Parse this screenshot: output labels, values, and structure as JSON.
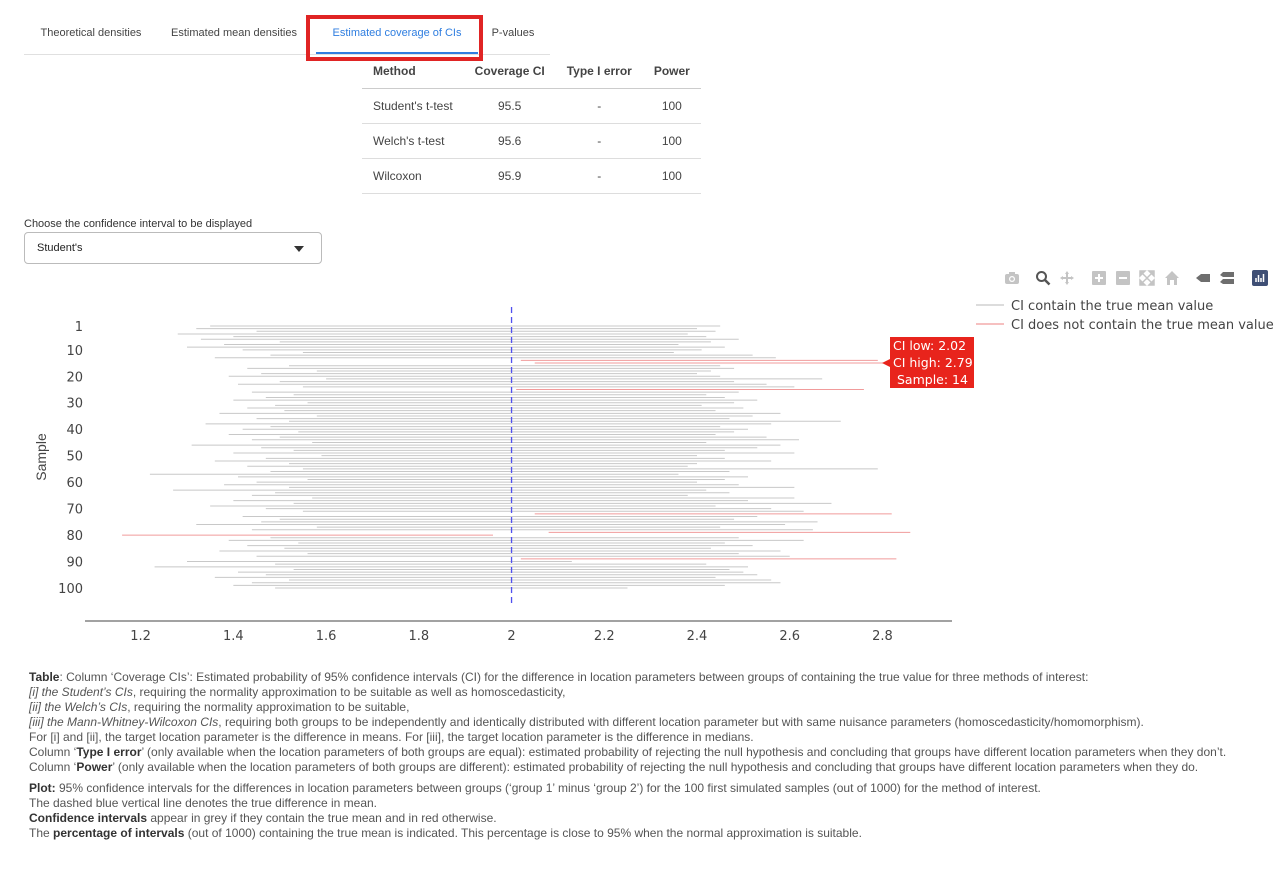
{
  "tabs": [
    {
      "label": "Theoretical densities"
    },
    {
      "label": "Estimated mean densities"
    },
    {
      "label": "Estimated coverage of CIs"
    },
    {
      "label": "P-values"
    }
  ],
  "table": {
    "headers": [
      "Method",
      "Coverage CI",
      "Type I error",
      "Power"
    ],
    "rows": [
      [
        "Student's t-test",
        "95.5",
        "-",
        "100"
      ],
      [
        "Welch's t-test",
        "95.6",
        "-",
        "100"
      ],
      [
        "Wilcoxon",
        "95.9",
        "-",
        "100"
      ]
    ]
  },
  "ci_select": {
    "label": "Choose the confidence interval to be displayed",
    "value": "Student's"
  },
  "modebar": {
    "icons": [
      "camera-icon",
      "zoom-icon",
      "pan-icon",
      "zoom-in-icon",
      "zoom-out-icon",
      "autoscale-icon",
      "home-icon",
      "hover-closest-icon",
      "hover-compare-icon",
      "plotly-logo-icon"
    ]
  },
  "colors": {
    "accent": "#2f7ee0",
    "ci_ok": "#c8c8c8",
    "ci_miss": "#f19b9b",
    "true_line": "#5050ee",
    "tooltip": "#e8241c"
  },
  "chart_data": {
    "type": "line",
    "ylabel": "Sample",
    "x_ticks": [
      "1.2",
      "1.4",
      "1.6",
      "1.8",
      "2",
      "2.2",
      "2.4",
      "2.6",
      "2.8"
    ],
    "y_ticks": [
      "1",
      "10",
      "20",
      "30",
      "40",
      "50",
      "60",
      "70",
      "80",
      "90",
      "100"
    ],
    "xlim": [
      1.08,
      2.95
    ],
    "true_value": 2,
    "legend": {
      "position": "top-right",
      "items": [
        "CI contain the true mean value",
        "CI does not contain the true mean value"
      ]
    },
    "tooltip": {
      "line1": "CI low: 2.02",
      "line2": "CI high: 2.79",
      "line3": "Sample: 14",
      "sample": 14,
      "low": 2.02,
      "high": 2.79
    },
    "intervals": [
      {
        "s": 1,
        "low": 1.35,
        "high": 2.45
      },
      {
        "s": 2,
        "low": 1.32,
        "high": 2.4
      },
      {
        "s": 3,
        "low": 1.45,
        "high": 2.44
      },
      {
        "s": 4,
        "low": 1.28,
        "high": 2.38
      },
      {
        "s": 5,
        "low": 1.4,
        "high": 2.42
      },
      {
        "s": 6,
        "low": 1.33,
        "high": 2.49
      },
      {
        "s": 7,
        "low": 1.5,
        "high": 2.43
      },
      {
        "s": 8,
        "low": 1.38,
        "high": 2.36
      },
      {
        "s": 9,
        "low": 1.3,
        "high": 2.46
      },
      {
        "s": 10,
        "low": 1.42,
        "high": 2.41
      },
      {
        "s": 11,
        "low": 1.55,
        "high": 2.35
      },
      {
        "s": 12,
        "low": 1.48,
        "high": 2.52
      },
      {
        "s": 13,
        "low": 1.36,
        "high": 2.57
      },
      {
        "s": 14,
        "low": 2.02,
        "high": 2.79
      },
      {
        "s": 15,
        "low": 2.05,
        "high": 2.81
      },
      {
        "s": 16,
        "low": 1.52,
        "high": 2.45
      },
      {
        "s": 17,
        "low": 1.43,
        "high": 2.48
      },
      {
        "s": 18,
        "low": 1.58,
        "high": 2.43
      },
      {
        "s": 19,
        "low": 1.46,
        "high": 2.4
      },
      {
        "s": 20,
        "low": 1.39,
        "high": 2.45
      },
      {
        "s": 21,
        "low": 1.6,
        "high": 2.67
      },
      {
        "s": 22,
        "low": 1.5,
        "high": 2.48
      },
      {
        "s": 23,
        "low": 1.41,
        "high": 2.55
      },
      {
        "s": 24,
        "low": 1.55,
        "high": 2.61
      },
      {
        "s": 25,
        "low": 2.01,
        "high": 2.76
      },
      {
        "s": 26,
        "low": 1.44,
        "high": 2.49
      },
      {
        "s": 27,
        "low": 1.53,
        "high": 2.42
      },
      {
        "s": 28,
        "low": 1.47,
        "high": 2.46
      },
      {
        "s": 29,
        "low": 1.4,
        "high": 2.53
      },
      {
        "s": 30,
        "low": 1.56,
        "high": 2.48
      },
      {
        "s": 31,
        "low": 1.49,
        "high": 2.41
      },
      {
        "s": 32,
        "low": 1.43,
        "high": 2.5
      },
      {
        "s": 33,
        "low": 1.51,
        "high": 2.44
      },
      {
        "s": 34,
        "low": 1.37,
        "high": 2.58
      },
      {
        "s": 35,
        "low": 1.58,
        "high": 2.52
      },
      {
        "s": 36,
        "low": 1.45,
        "high": 2.47
      },
      {
        "s": 37,
        "low": 1.52,
        "high": 2.71
      },
      {
        "s": 38,
        "low": 1.34,
        "high": 2.56
      },
      {
        "s": 39,
        "low": 1.48,
        "high": 2.45
      },
      {
        "s": 40,
        "low": 1.42,
        "high": 2.51
      },
      {
        "s": 41,
        "low": 1.54,
        "high": 2.48
      },
      {
        "s": 42,
        "low": 1.39,
        "high": 2.44
      },
      {
        "s": 43,
        "low": 1.5,
        "high": 2.55
      },
      {
        "s": 44,
        "low": 1.44,
        "high": 2.62
      },
      {
        "s": 45,
        "low": 1.57,
        "high": 2.42
      },
      {
        "s": 46,
        "low": 1.31,
        "high": 2.58
      },
      {
        "s": 47,
        "low": 1.46,
        "high": 2.53
      },
      {
        "s": 48,
        "low": 1.53,
        "high": 2.46
      },
      {
        "s": 49,
        "low": 1.4,
        "high": 2.61
      },
      {
        "s": 50,
        "low": 1.59,
        "high": 2.4
      },
      {
        "s": 51,
        "low": 1.47,
        "high": 2.46
      },
      {
        "s": 52,
        "low": 1.36,
        "high": 2.56
      },
      {
        "s": 53,
        "low": 1.52,
        "high": 2.4
      },
      {
        "s": 54,
        "low": 1.43,
        "high": 2.38
      },
      {
        "s": 55,
        "low": 1.55,
        "high": 2.79
      },
      {
        "s": 56,
        "low": 1.48,
        "high": 2.47
      },
      {
        "s": 57,
        "low": 1.22,
        "high": 2.36
      },
      {
        "s": 58,
        "low": 1.41,
        "high": 2.51
      },
      {
        "s": 59,
        "low": 1.56,
        "high": 2.46
      },
      {
        "s": 60,
        "low": 1.45,
        "high": 2.4
      },
      {
        "s": 61,
        "low": 1.38,
        "high": 2.49
      },
      {
        "s": 62,
        "low": 1.52,
        "high": 2.61
      },
      {
        "s": 63,
        "low": 1.27,
        "high": 2.42
      },
      {
        "s": 64,
        "low": 1.49,
        "high": 2.47
      },
      {
        "s": 65,
        "low": 1.44,
        "high": 2.38
      },
      {
        "s": 66,
        "low": 1.57,
        "high": 2.61
      },
      {
        "s": 67,
        "low": 1.4,
        "high": 2.51
      },
      {
        "s": 68,
        "low": 1.53,
        "high": 2.69
      },
      {
        "s": 69,
        "low": 1.35,
        "high": 2.44
      },
      {
        "s": 70,
        "low": 1.47,
        "high": 2.56
      },
      {
        "s": 71,
        "low": 1.55,
        "high": 2.63
      },
      {
        "s": 72,
        "low": 2.05,
        "high": 2.82
      },
      {
        "s": 73,
        "low": 1.42,
        "high": 2.53
      },
      {
        "s": 74,
        "low": 1.5,
        "high": 2.48
      },
      {
        "s": 75,
        "low": 1.46,
        "high": 2.66
      },
      {
        "s": 76,
        "low": 1.32,
        "high": 2.59
      },
      {
        "s": 77,
        "low": 1.58,
        "high": 2.45
      },
      {
        "s": 78,
        "low": 1.44,
        "high": 2.65
      },
      {
        "s": 79,
        "low": 2.08,
        "high": 2.86
      },
      {
        "s": 80,
        "low": 1.16,
        "high": 1.96
      },
      {
        "s": 81,
        "low": 1.48,
        "high": 2.49
      },
      {
        "s": 82,
        "low": 1.39,
        "high": 2.63
      },
      {
        "s": 83,
        "low": 1.54,
        "high": 2.46
      },
      {
        "s": 84,
        "low": 1.43,
        "high": 2.52
      },
      {
        "s": 85,
        "low": 1.51,
        "high": 2.43
      },
      {
        "s": 86,
        "low": 1.37,
        "high": 2.58
      },
      {
        "s": 87,
        "low": 1.56,
        "high": 2.49
      },
      {
        "s": 88,
        "low": 1.45,
        "high": 2.6
      },
      {
        "s": 89,
        "low": 2.02,
        "high": 2.83
      },
      {
        "s": 90,
        "low": 1.3,
        "high": 2.13
      },
      {
        "s": 91,
        "low": 1.49,
        "high": 2.42
      },
      {
        "s": 92,
        "low": 1.23,
        "high": 2.51
      },
      {
        "s": 93,
        "low": 1.53,
        "high": 2.47
      },
      {
        "s": 94,
        "low": 1.41,
        "high": 2.5
      },
      {
        "s": 95,
        "low": 1.47,
        "high": 2.53
      },
      {
        "s": 96,
        "low": 1.36,
        "high": 2.44
      },
      {
        "s": 97,
        "low": 1.52,
        "high": 2.56
      },
      {
        "s": 98,
        "low": 1.44,
        "high": 2.58
      },
      {
        "s": 99,
        "low": 1.4,
        "high": 2.46
      },
      {
        "s": 100,
        "low": 1.49,
        "high": 2.25
      }
    ]
  },
  "caption": {
    "table_label": "Table",
    "table_text": ": Column ‘Coverage CIs’: Estimated probability of 95% confidence intervals (CI) for the difference in location parameters between groups of containing the true value for three methods of interest:",
    "i_em": "[i] the Student’s CIs",
    "i_text": ", requiring the normality approximation to be suitable as well as homoscedasticity,",
    "ii_em": "[ii] the Welch’s CIs",
    "ii_text": ", requiring the normality approximation to be suitable,",
    "iii_em": "[iii] the Mann-Whitney-Wilcoxon CIs",
    "iii_text": ", requiring both groups to be independently and identically distributed with different location parameter but with same nuisance parameters (homoscedasticity/homomorphism).",
    "params_text": "For [i] and [ii], the target location parameter is the difference in means. For [iii], the target location parameter is the difference in medians.",
    "type1_pre": "Column ‘",
    "type1_b": "Type I error",
    "type1_text": "’ (only available when the location parameters of both groups are equal): estimated probability of rejecting the null hypothesis and concluding that groups have different location parameters when they don’t.",
    "power_pre": "Column ‘",
    "power_b": "Power",
    "power_text": "’ (only available when the location parameters of both groups are different): estimated probability of rejecting the null hypothesis and concluding that groups have different location parameters when they do.",
    "plot_label": "Plot:",
    "plot_text": " 95% confidence intervals for the differences in location parameters between groups (‘group 1’ minus ‘group 2’) for the 100 first simulated samples (out of 1000) for the method of interest.",
    "dashed_text": "The dashed blue vertical line denotes the true difference in mean.",
    "ci_label": "Confidence intervals",
    "ci_text": " appear in grey if they contain the true mean and in red otherwise.",
    "pct_pre": "The ",
    "pct_b": "percentage of intervals",
    "pct_text": " (out of 1000) containing the true mean is indicated. This percentage is close to 95% when the normal approximation is suitable."
  }
}
